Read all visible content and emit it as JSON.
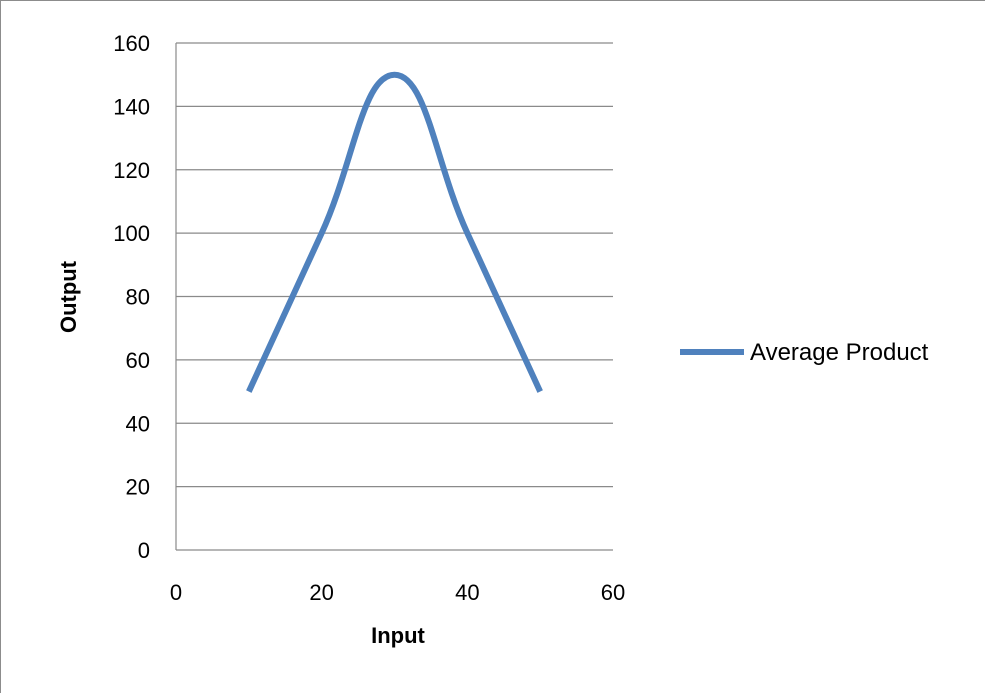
{
  "chart_data": {
    "type": "line",
    "title": "",
    "xlabel": "Input",
    "ylabel": "Output",
    "xlim": [
      0,
      60
    ],
    "ylim": [
      0,
      160
    ],
    "x_ticks": [
      0,
      20,
      40,
      60
    ],
    "y_ticks": [
      0,
      20,
      40,
      60,
      80,
      100,
      120,
      140,
      160
    ],
    "x_tick_labels": [
      "0",
      "20",
      "40",
      "60"
    ],
    "y_tick_labels": [
      "0",
      "20",
      "40",
      "60",
      "80",
      "100",
      "120",
      "140",
      "160"
    ],
    "grid": "horizontal major gridlines",
    "legend_position": "right",
    "smooth": true,
    "series": [
      {
        "name": "Average Product",
        "color": "#4f81bd",
        "x": [
          10,
          20,
          30,
          40,
          50
        ],
        "y": [
          50,
          100,
          150,
          100,
          50
        ]
      }
    ]
  }
}
